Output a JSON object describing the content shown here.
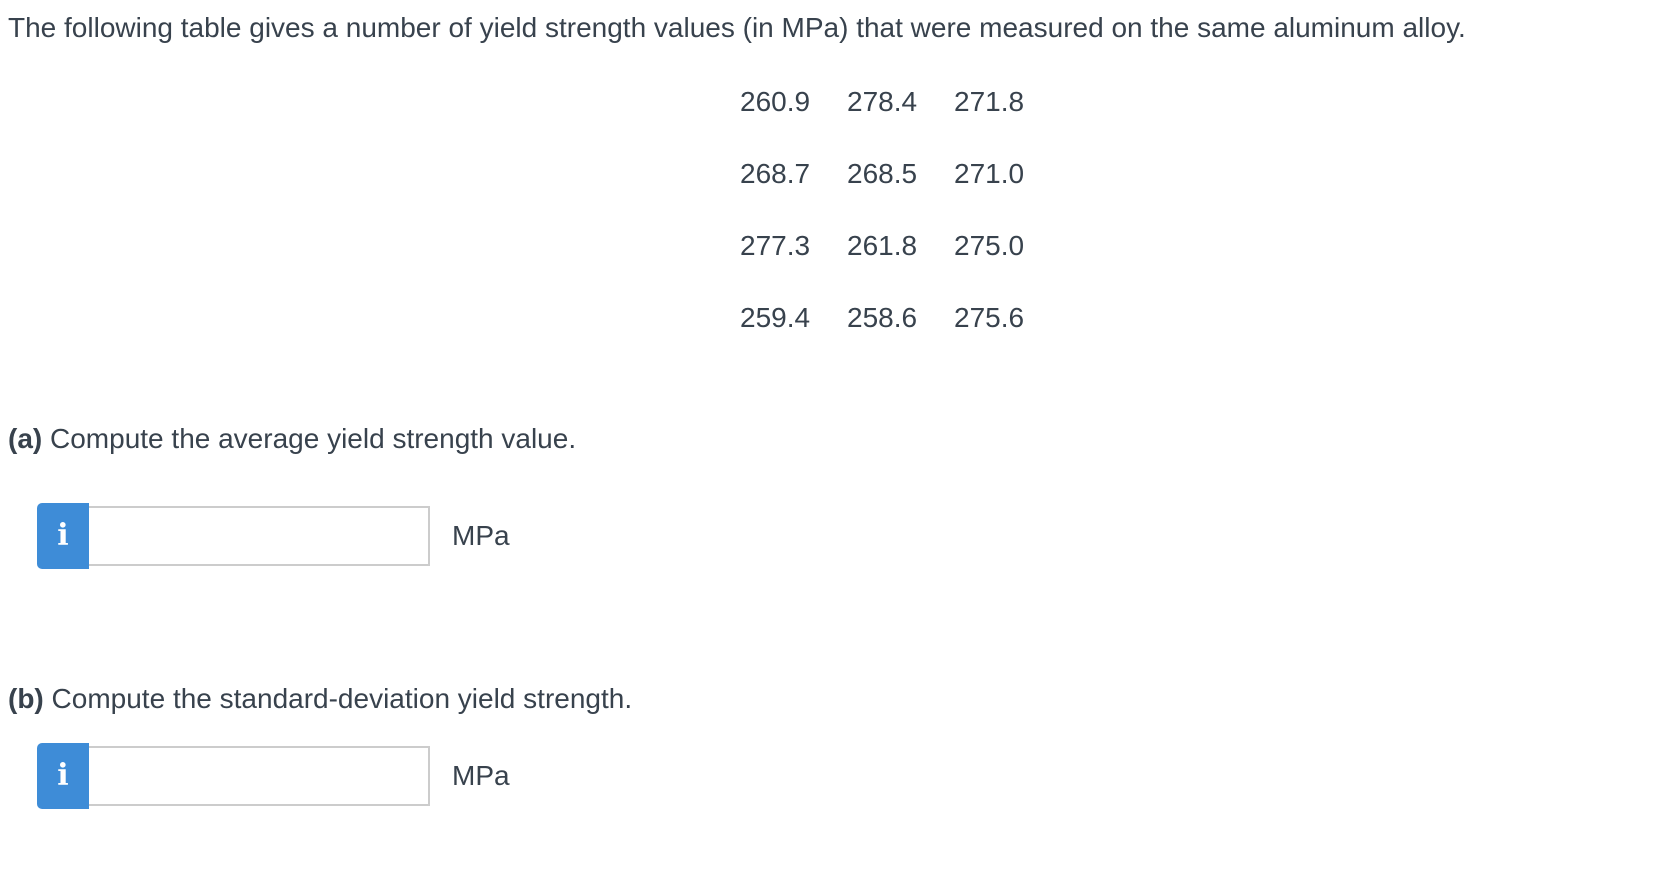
{
  "intro": "The following table gives a number of yield strength values (in MPa) that were measured on the same aluminum alloy.",
  "table": {
    "rows": [
      [
        "260.9",
        "278.4",
        "271.8"
      ],
      [
        "268.7",
        "268.5",
        "271.0"
      ],
      [
        "277.3",
        "261.8",
        "275.0"
      ],
      [
        "259.4",
        "258.6",
        "275.6"
      ]
    ]
  },
  "parts": [
    {
      "label": "(a)",
      "prompt": "Compute the average yield strength value.",
      "info_glyph": "i",
      "input_value": "",
      "unit": "MPa"
    },
    {
      "label": "(b)",
      "prompt": "Compute the standard-deviation yield strength.",
      "info_glyph": "i",
      "input_value": "",
      "unit": "MPa"
    }
  ],
  "colors": {
    "text": "#38424D",
    "info_button_blue": "#3E8CD7",
    "input_border": "#CCCCCC"
  }
}
